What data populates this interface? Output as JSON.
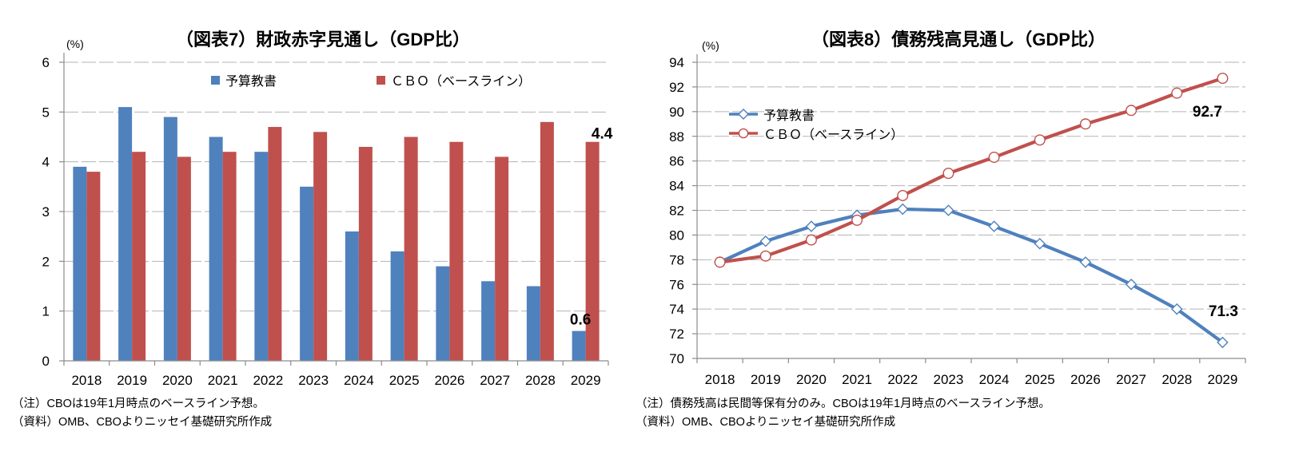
{
  "chart_data": [
    {
      "type": "bar",
      "title": "（図表7）財政赤字見通し（GDP比）",
      "unit_label": "(%)",
      "categories": [
        "2018",
        "2019",
        "2020",
        "2021",
        "2022",
        "2023",
        "2024",
        "2025",
        "2026",
        "2027",
        "2028",
        "2029"
      ],
      "series": [
        {
          "name": "予算教書",
          "color": "#4F81BD",
          "marker": "square",
          "values": [
            3.9,
            5.1,
            4.9,
            4.5,
            4.2,
            3.5,
            2.6,
            2.2,
            1.9,
            1.6,
            1.5,
            0.6
          ]
        },
        {
          "name": "ＣＢＯ（ベースライン）",
          "color": "#C0504D",
          "marker": "square",
          "values": [
            3.8,
            4.2,
            4.1,
            4.2,
            4.7,
            4.6,
            4.3,
            4.5,
            4.4,
            4.1,
            4.8,
            4.4
          ]
        }
      ],
      "ylim": [
        0,
        6
      ],
      "yticks": [
        0,
        1,
        2,
        3,
        4,
        5,
        6
      ],
      "xlabel": "",
      "ylabel": "(%)",
      "grid": "dashed-horizontal",
      "legend_position": "top-inside",
      "annotations": [
        {
          "series": 0,
          "index": 11,
          "text": "0.6"
        },
        {
          "series": 1,
          "index": 11,
          "text": "4.4"
        }
      ],
      "note": "（注）CBOは19年1月時点のベースライン予想。",
      "source": "（資料）OMB、CBOよりニッセイ基礎研究所作成"
    },
    {
      "type": "line",
      "title": "（図表8）債務残高見通し（GDP比）",
      "unit_label": "(%)",
      "categories": [
        "2018",
        "2019",
        "2020",
        "2021",
        "2022",
        "2023",
        "2024",
        "2025",
        "2026",
        "2027",
        "2028",
        "2029"
      ],
      "series": [
        {
          "name": "予算教書",
          "color": "#4F81BD",
          "marker": "diamond",
          "values": [
            77.8,
            79.5,
            80.7,
            81.6,
            82.1,
            82.0,
            80.7,
            79.3,
            77.8,
            76.0,
            74.0,
            71.3
          ]
        },
        {
          "name": "ＣＢＯ（ベースライン）",
          "color": "#C0504D",
          "marker": "circle",
          "values": [
            77.8,
            78.3,
            79.6,
            81.2,
            83.2,
            85.0,
            86.3,
            87.7,
            89.0,
            90.1,
            91.5,
            92.7
          ]
        }
      ],
      "ylim": [
        70,
        94
      ],
      "yticks": [
        70,
        72,
        74,
        76,
        78,
        80,
        82,
        84,
        86,
        88,
        90,
        92,
        94
      ],
      "xlabel": "",
      "ylabel": "(%)",
      "grid": "dashed-horizontal",
      "legend_position": "upper-left-inside",
      "annotations": [
        {
          "series": 1,
          "index": 11,
          "text": "92.7"
        },
        {
          "series": 0,
          "index": 11,
          "text": "71.3"
        }
      ],
      "note": "（注）債務残高は民間等保有分のみ。CBOは19年1月時点のベースライン予想。",
      "source": "（資料）OMB、CBOよりニッセイ基礎研究所作成"
    }
  ],
  "style": {
    "grid_color": "#b3b3b3",
    "axis_color": "#8c8c8c",
    "marker_fill": "#ffffff"
  }
}
